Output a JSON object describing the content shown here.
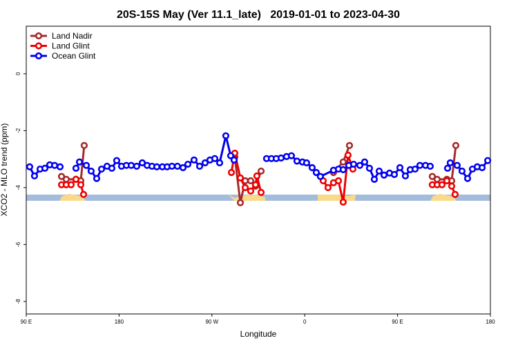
{
  "chart_data": {
    "type": "line",
    "title": "20S-15S May (Ver 11.1_late)   2019-01-01 to 2023-04-30",
    "xlabel": "Longitude",
    "ylabel": "XCO2 - MLO trend (ppm)",
    "xlim": [
      90,
      540
    ],
    "ylim": [
      -8.44,
      1.67
    ],
    "xticks": [
      {
        "value": 90,
        "label": "90 E"
      },
      {
        "value": 180,
        "label": "180"
      },
      {
        "value": 270,
        "label": "90 W"
      },
      {
        "value": 360,
        "label": "0"
      },
      {
        "value": 450,
        "label": "90 E"
      },
      {
        "value": 540,
        "label": "180"
      }
    ],
    "yticks": [
      0,
      -2,
      -4,
      -6,
      -8
    ],
    "legend": "top-left",
    "series": [
      {
        "name": "Land Nadir",
        "color": "#a52a2a",
        "x": [
          124.2,
          128.8,
          138.2,
          142.9,
          146.2,
          null,
          292.2,
          297.6,
          302.3,
          307.6,
          312.3,
          317.7,
          null,
          387.9,
          397.3,
          403.4,
          null,
          483.7,
          488.4,
          497.8,
          502.5,
          506.5
        ],
        "values": [
          -3.61,
          -3.71,
          -3.71,
          -3.76,
          -2.52,
          null,
          -2.93,
          -4.53,
          -3.76,
          -3.76,
          -3.95,
          -3.42,
          null,
          -3.47,
          -3.1,
          -2.52,
          null,
          -3.61,
          -3.71,
          -3.71,
          -3.76,
          -2.52
        ]
      },
      {
        "name": "Land Glint",
        "color": "#ee0000",
        "x": [
          124.2,
          128.8,
          133.5,
          138.2,
          142.9,
          145.6,
          null,
          288.9,
          292.2,
          297.6,
          302.3,
          307.6,
          312.3,
          313.6,
          317.7,
          null,
          377.9,
          382.6,
          387.9,
          392.7,
          397.3,
          402.0,
          406.7,
          null,
          483.7,
          488.4,
          493.1,
          497.8,
          502.5,
          505.8
        ],
        "values": [
          -3.9,
          -3.9,
          -3.9,
          -3.71,
          -3.9,
          -4.24,
          null,
          -3.47,
          -2.79,
          -3.66,
          -4.0,
          -4.12,
          -3.9,
          -3.59,
          -4.17,
          null,
          -3.76,
          -4.0,
          -3.83,
          -3.76,
          -4.51,
          -2.86,
          -3.35,
          null,
          -3.9,
          -3.9,
          -3.9,
          -3.76,
          -3.95,
          -4.24
        ]
      },
      {
        "name": "Ocean Glint",
        "color": "#0000ee",
        "x": [
          93.3,
          98.0,
          103.4,
          108.1,
          112.8,
          117.5,
          122.8,
          null,
          138.2,
          141.6,
          148.3,
          152.9,
          158.3,
          163.0,
          168.3,
          173.0,
          177.7,
          182.4,
          187.1,
          191.8,
          197.1,
          202.5,
          207.2,
          211.9,
          216.6,
          222.0,
          226.6,
          231.3,
          236.6,
          242.0,
          246.7,
          252.7,
          258.1,
          263.4,
          268.1,
          272.8,
          277.5,
          283.5,
          288.2,
          291.5,
          null,
          323.0,
          327.7,
          332.4,
          337.1,
          342.4,
          347.1,
          352.5,
          357.8,
          361.8,
          367.2,
          371.2,
          375.2,
          387.9,
          392.7,
          397.3,
          402.7,
          407.4,
          413.4,
          418.1,
          422.8,
          427.5,
          432.2,
          436.9,
          442.2,
          446.9,
          452.3,
          457.6,
          462.3,
          467.0,
          471.7,
          477.1,
          481.7,
          null,
          498.5,
          501.1,
          507.8,
          512.5,
          517.9,
          522.6,
          527.3,
          532.0,
          537.4
        ],
        "values": [
          -3.27,
          -3.59,
          -3.35,
          -3.32,
          -3.2,
          -3.22,
          -3.27,
          null,
          -3.32,
          -3.1,
          -3.22,
          -3.42,
          -3.68,
          -3.35,
          -3.25,
          -3.32,
          -3.05,
          -3.25,
          -3.22,
          -3.22,
          -3.25,
          -3.13,
          -3.22,
          -3.25,
          -3.27,
          -3.27,
          -3.27,
          -3.25,
          -3.25,
          -3.3,
          -3.18,
          -3.03,
          -3.25,
          -3.13,
          -3.03,
          -2.98,
          -3.13,
          -2.18,
          -2.88,
          -3.03,
          null,
          -2.98,
          -2.98,
          -2.98,
          -2.96,
          -2.91,
          -2.88,
          -3.07,
          -3.1,
          -3.13,
          -3.3,
          -3.47,
          -3.61,
          -3.39,
          -3.35,
          -3.37,
          -3.22,
          -3.18,
          -3.22,
          -3.1,
          -3.32,
          -3.71,
          -3.42,
          -3.56,
          -3.49,
          -3.54,
          -3.3,
          -3.59,
          -3.37,
          -3.35,
          -3.22,
          -3.22,
          -3.25,
          null,
          -3.32,
          -3.13,
          -3.22,
          -3.42,
          -3.68,
          -3.35,
          -3.27,
          -3.3,
          -3.05
        ]
      }
    ]
  }
}
